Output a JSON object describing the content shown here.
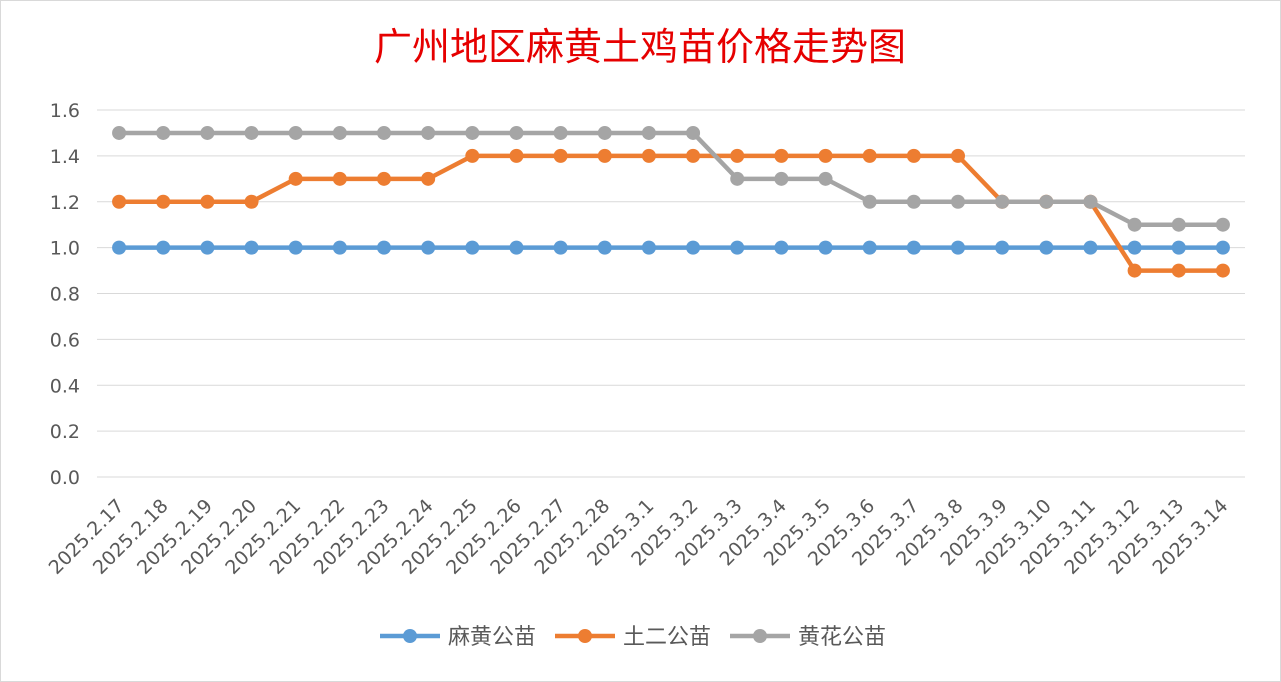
{
  "chart_data": {
    "type": "line",
    "title": "广州地区麻黄土鸡苗价格走势图",
    "xlabel": "",
    "ylabel": "",
    "ylim": [
      0,
      1.6
    ],
    "yticks": [
      "0.0",
      "0.2",
      "0.4",
      "0.6",
      "0.8",
      "1.0",
      "1.2",
      "1.4",
      "1.6"
    ],
    "grid": true,
    "legend_position": "bottom",
    "categories": [
      "2025.2.17",
      "2025.2.18",
      "2025.2.19",
      "2025.2.20",
      "2025.2.21",
      "2025.2.22",
      "2025.2.23",
      "2025.2.24",
      "2025.2.25",
      "2025.2.26",
      "2025.2.27",
      "2025.2.28",
      "2025.3.1",
      "2025.3.2",
      "2025.3.3",
      "2025.3.4",
      "2025.3.5",
      "2025.3.6",
      "2025.3.7",
      "2025.3.8",
      "2025.3.9",
      "2025.3.10",
      "2025.3.11",
      "2025.3.12",
      "2025.3.13",
      "2025.3.14"
    ],
    "series": [
      {
        "name": "麻黄公苗",
        "color": "#5b9bd5",
        "values": [
          1.0,
          1.0,
          1.0,
          1.0,
          1.0,
          1.0,
          1.0,
          1.0,
          1.0,
          1.0,
          1.0,
          1.0,
          1.0,
          1.0,
          1.0,
          1.0,
          1.0,
          1.0,
          1.0,
          1.0,
          1.0,
          1.0,
          1.0,
          1.0,
          1.0,
          1.0
        ]
      },
      {
        "name": "土二公苗",
        "color": "#ed7d31",
        "values": [
          1.2,
          1.2,
          1.2,
          1.2,
          1.3,
          1.3,
          1.3,
          1.3,
          1.4,
          1.4,
          1.4,
          1.4,
          1.4,
          1.4,
          1.4,
          1.4,
          1.4,
          1.4,
          1.4,
          1.4,
          1.2,
          1.2,
          1.2,
          0.9,
          0.9,
          0.9
        ]
      },
      {
        "name": "黄花公苗",
        "color": "#a5a5a5",
        "values": [
          1.5,
          1.5,
          1.5,
          1.5,
          1.5,
          1.5,
          1.5,
          1.5,
          1.5,
          1.5,
          1.5,
          1.5,
          1.5,
          1.5,
          1.3,
          1.3,
          1.3,
          1.2,
          1.2,
          1.2,
          1.2,
          1.2,
          1.2,
          1.1,
          1.1,
          1.1
        ]
      }
    ]
  }
}
